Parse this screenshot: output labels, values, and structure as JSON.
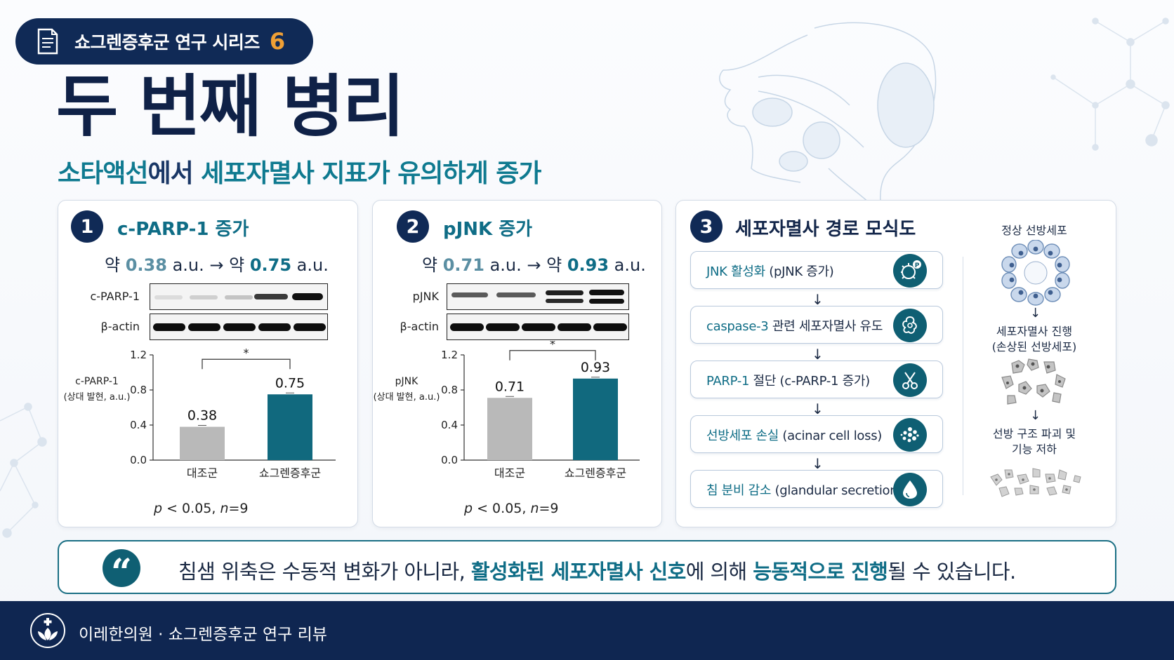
{
  "series": {
    "label": "쇼그렌증후군 연구 시리즈",
    "number": "6"
  },
  "title": "두 번째 병리",
  "subtitle": {
    "part1": "소타액선",
    "part2": "에서 ",
    "part3": "세포자멸사 지표가 유의하게  증가"
  },
  "panel1": {
    "number": "1",
    "title": "c-PARP-1 증가",
    "change": {
      "prefix_a": "약 ",
      "value_a": "0.38",
      "unit_a": " a.u. → 약 ",
      "value_b": "0.75",
      "unit_b": " a.u."
    },
    "blot_labels": [
      "c-PARP-1",
      "β-actin"
    ],
    "ylabel_line1": "c-PARP-1",
    "ylabel_line2": "(상대 발현, a.u.)",
    "significance": "*",
    "pvalue_prefix": "p",
    "pvalue_middle": " < 0.05, ",
    "n_label": "n",
    "n_value": "=9"
  },
  "panel2": {
    "number": "2",
    "title": "pJNK 증가",
    "change": {
      "prefix_a": "약 ",
      "value_a": "0.71",
      "unit_a": " a.u. → 약 ",
      "value_b": "0.93",
      "unit_b": " a.u."
    },
    "blot_labels": [
      "pJNK",
      "β-actin"
    ],
    "ylabel_line1": "pJNK",
    "ylabel_line2": "(상대 발현, a.u.)",
    "significance": "*",
    "pvalue_prefix": "p",
    "pvalue_middle": " < 0.05, ",
    "n_label": "n",
    "n_value": "=9"
  },
  "chart_data": [
    {
      "type": "bar",
      "categories": [
        "대조군",
        "쇼그렌증후군"
      ],
      "values": [
        0.38,
        0.75
      ],
      "value_labels": [
        "0.38",
        "0.75"
      ],
      "title": "",
      "xlabel": "",
      "ylabel": "c-PARP-1 (상대 발현, a.u.)",
      "ylim": [
        0,
        1.2
      ],
      "yticks": [
        "0.0",
        "0.4",
        "0.8",
        "1.2"
      ],
      "colors": [
        "#b9b9b9",
        "#11697e"
      ],
      "grid": false
    },
    {
      "type": "bar",
      "categories": [
        "대조군",
        "쇼그렌증후군"
      ],
      "values": [
        0.71,
        0.93
      ],
      "value_labels": [
        "0.71",
        "0.93"
      ],
      "title": "",
      "xlabel": "",
      "ylabel": "pJNK (상대 발현, a.u.)",
      "ylim": [
        0,
        1.2
      ],
      "yticks": [
        "0.0",
        "0.4",
        "0.8",
        "1.2"
      ],
      "colors": [
        "#b9b9b9",
        "#11697e"
      ],
      "grid": false
    }
  ],
  "panel3": {
    "number": "3",
    "title": "세포자멸사 경로 모식도",
    "steps": [
      {
        "hl": "JNK 활성화",
        "rest": " (pJNK 증가)",
        "icon": "phosphorylated-cell-icon"
      },
      {
        "hl": "caspase-3",
        "rest": " 관련 세포자멸사 유도",
        "icon": "apoptotic-cell-icon"
      },
      {
        "hl": "PARP-1",
        "rest": " 절단 (c-PARP-1 증가)",
        "icon": "scissors-icon"
      },
      {
        "hl": "선방세포 손실",
        "rest": " (acinar cell loss)",
        "icon": "cell-loss-icon"
      },
      {
        "hl": "침 분비 감소",
        "rest": " (glandular secretion ↓)",
        "icon": "drop-icon"
      }
    ],
    "arrow": "↓",
    "side": {
      "stage1": "정상 선방세포",
      "stage2_line1": "세포자멸사 진행",
      "stage2_line2": "(손상된 선방세포)",
      "stage3_line1": "선방 구조 파괴 및",
      "stage3_line2": "기능 저하"
    }
  },
  "quote": {
    "mark": "“",
    "part1": "침샘 위축은 수동적 변화가 아니라, ",
    "part2": "활성화된 세포자멸사 신호",
    "part3": "에 의해  ",
    "part4": "능동적으로 진행",
    "part5": "될 수 있습니다."
  },
  "footer": {
    "text": "이레한의원 · 쇼그렌증후군 연구 리뷰"
  },
  "colors": {
    "navy": "#102a56",
    "teal": "#0f6d86",
    "accent_orange": "#f0a035",
    "bar_control": "#b9b9b9",
    "bar_sjs": "#11697e"
  }
}
